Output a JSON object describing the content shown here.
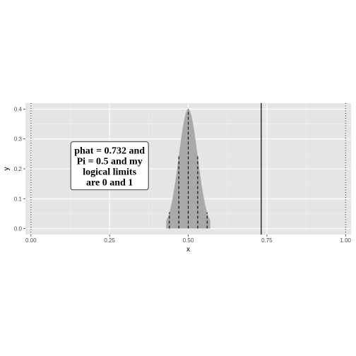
{
  "chart_data": {
    "type": "area",
    "xlabel": "x",
    "ylabel": "y",
    "xlim": [
      -0.0175,
      1.0175
    ],
    "ylim": [
      -0.02,
      0.42
    ],
    "x_ticks": [
      0.0,
      0.25,
      0.5,
      0.75,
      1.0
    ],
    "x_tick_labels": [
      "0.00",
      "0.25",
      "0.50",
      "0.75",
      "1.00"
    ],
    "y_ticks": [
      0.0,
      0.1,
      0.2,
      0.3,
      0.4
    ],
    "y_tick_labels": [
      "0.0",
      "0.1",
      "0.2",
      "0.3",
      "0.4"
    ],
    "grid": true,
    "background": "#e5e5e5",
    "density": {
      "mean": 0.5,
      "sd": 0.03,
      "x_range": [
        0.43,
        0.57
      ],
      "fill": "#a9a9a9"
    },
    "dashed_lines_x": [
      0.44,
      0.47,
      0.5,
      0.53,
      0.56
    ],
    "dotted_lines_x": [
      0.0,
      1.0
    ],
    "solid_line_x": 0.732,
    "annotation": {
      "lines": [
        "phat = 0.732 and",
        "Pi = 0.5 and my",
        "logical limits",
        "are 0 and 1"
      ],
      "x": 0.25,
      "y": 0.21
    }
  }
}
